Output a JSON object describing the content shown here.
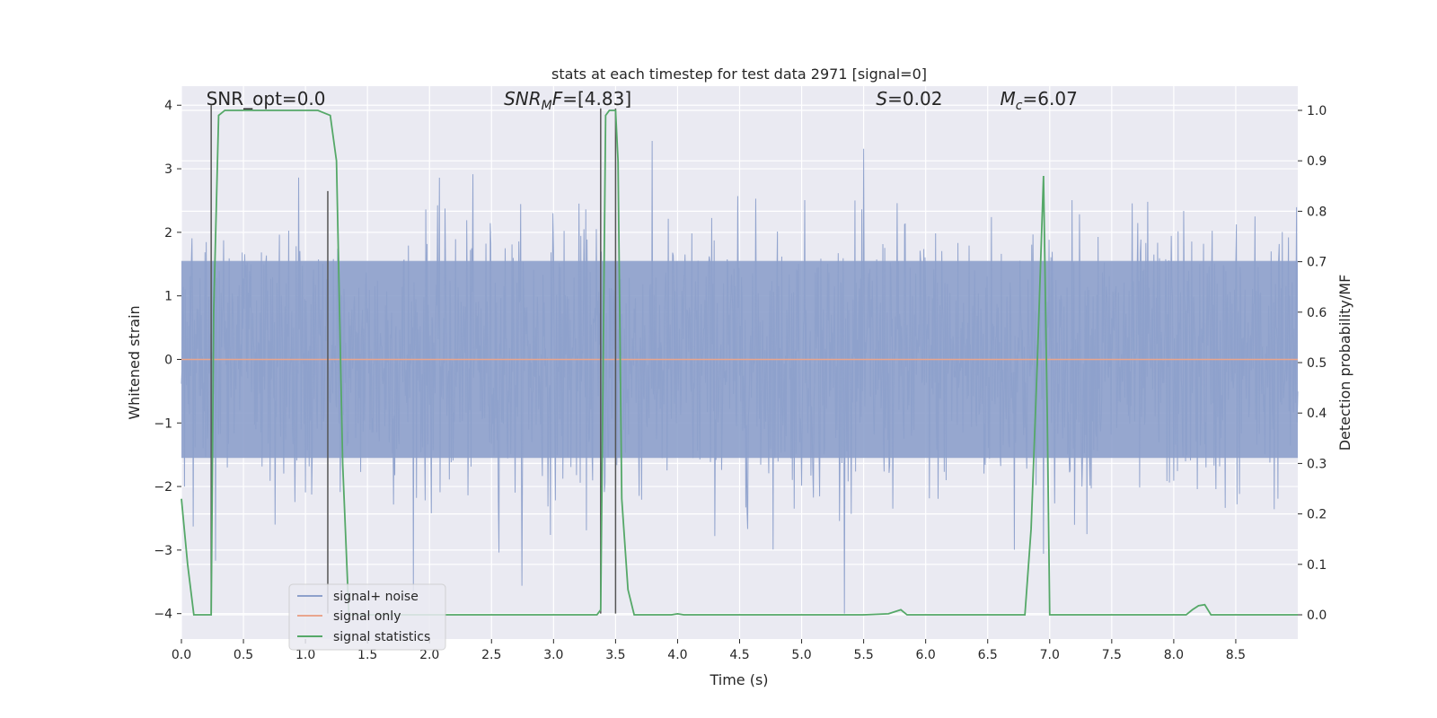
{
  "chart_data": {
    "type": "line",
    "title": "stats at each timestep for test data 2971 [signal=0]",
    "xlabel": "Time (s)",
    "ylabel": "Whitened strain",
    "y2label": "Detection probability/MF",
    "xlim": [
      0.0,
      9.0
    ],
    "ylim": [
      -4.4,
      4.3
    ],
    "y2lim": [
      -0.048,
      1.048
    ],
    "xticks": [
      "0.0",
      "0.5",
      "1.0",
      "1.5",
      "2.0",
      "2.5",
      "3.0",
      "3.5",
      "4.0",
      "4.5",
      "5.0",
      "5.5",
      "6.0",
      "6.5",
      "7.0",
      "7.5",
      "8.0",
      "8.5"
    ],
    "xtick_values": [
      0.0,
      0.5,
      1.0,
      1.5,
      2.0,
      2.5,
      3.0,
      3.5,
      4.0,
      4.5,
      5.0,
      5.5,
      6.0,
      6.5,
      7.0,
      7.5,
      8.0,
      8.5
    ],
    "yticks": [
      "−4",
      "−3",
      "−2",
      "−1",
      "0",
      "1",
      "2",
      "3",
      "4"
    ],
    "ytick_values": [
      -4,
      -3,
      -2,
      -1,
      0,
      1,
      2,
      3,
      4
    ],
    "y2ticks": [
      "0.0",
      "0.1",
      "0.2",
      "0.3",
      "0.4",
      "0.5",
      "0.6",
      "0.7",
      "0.8",
      "0.9",
      "1.0"
    ],
    "y2tick_values": [
      0.0,
      0.1,
      0.2,
      0.3,
      0.4,
      0.5,
      0.6,
      0.7,
      0.8,
      0.9,
      1.0
    ],
    "grid": true,
    "legend_position": "lower-left",
    "annotations": [
      {
        "html": "SNR_opt=0.0",
        "x": 0.2
      },
      {
        "html": "<tspan font-style=\"italic\">SNR</tspan><tspan font-style=\"italic\" font-size=\"14\" dy=\"5\">M</tspan><tspan font-style=\"italic\" dy=\"-5\">F</tspan>=[4.83]",
        "x": 2.6
      },
      {
        "html": "<tspan font-style=\"italic\">S</tspan>=0.02",
        "x": 5.6
      },
      {
        "html": "<tspan font-style=\"italic\">M</tspan><tspan font-style=\"italic\" font-size=\"14\" dy=\"5\">c</tspan><tspan dy=\"-5\">=6.07</tspan>",
        "x": 6.6
      }
    ],
    "annotation_y": 4.1,
    "vlines": [
      {
        "x": 0.24,
        "y0": -4.0,
        "y1": 4.0
      },
      {
        "x": 1.18,
        "y0": -4.0,
        "y1": 2.65
      },
      {
        "x": 3.38,
        "y0": -4.0,
        "y1": 3.95
      },
      {
        "x": 3.5,
        "y0": -4.0,
        "y1": 3.95
      }
    ],
    "series": [
      {
        "name": "signal+ noise",
        "color": "#8da0cb",
        "kind": "noise",
        "axis": "left",
        "band_inner": 1.55,
        "band_outer_high": 3.9,
        "band_outer_low": -4.0
      },
      {
        "name": "signal only",
        "color": "#e9a58d",
        "kind": "constant",
        "axis": "left",
        "value": 0.0
      },
      {
        "name": "signal statistics",
        "color": "#55a868",
        "kind": "line",
        "axis": "right",
        "x": [
          0.0,
          0.05,
          0.1,
          0.2,
          0.24,
          0.26,
          0.3,
          0.35,
          0.4,
          0.5,
          0.6,
          0.7,
          0.8,
          0.9,
          1.0,
          1.1,
          1.15,
          1.2,
          1.25,
          1.3,
          1.35,
          1.4,
          1.5,
          2.0,
          2.5,
          3.0,
          3.35,
          3.38,
          3.4,
          3.42,
          3.45,
          3.48,
          3.5,
          3.52,
          3.55,
          3.6,
          3.65,
          3.7,
          3.8,
          3.95,
          4.0,
          4.05,
          4.5,
          5.0,
          5.5,
          5.7,
          5.8,
          5.85,
          5.9,
          6.0,
          6.5,
          6.8,
          6.85,
          6.9,
          6.95,
          6.98,
          7.0,
          7.1,
          7.5,
          8.0,
          8.1,
          8.15,
          8.2,
          8.25,
          8.3,
          8.5,
          9.0
        ],
        "y": [
          0.23,
          0.1,
          0.0,
          0.0,
          0.0,
          0.6,
          0.99,
          1.0,
          1.0,
          1.0,
          1.0,
          1.0,
          1.0,
          1.0,
          1.0,
          1.0,
          0.995,
          0.99,
          0.9,
          0.3,
          0.0,
          0.0,
          0.0,
          0.0,
          0.0,
          0.0,
          0.0,
          0.01,
          0.5,
          0.99,
          1.0,
          1.0,
          1.0,
          0.9,
          0.23,
          0.05,
          0.0,
          0.0,
          0.0,
          0.0,
          0.002,
          0.0,
          0.0,
          0.0,
          0.0,
          0.002,
          0.01,
          0.0,
          0.0,
          0.0,
          0.0,
          0.0,
          0.17,
          0.5,
          0.87,
          0.4,
          0.0,
          0.0,
          0.0,
          0.0,
          0.0,
          0.01,
          0.018,
          0.02,
          0.0,
          0.0,
          0.0
        ]
      }
    ],
    "vline_color": "#555555"
  }
}
